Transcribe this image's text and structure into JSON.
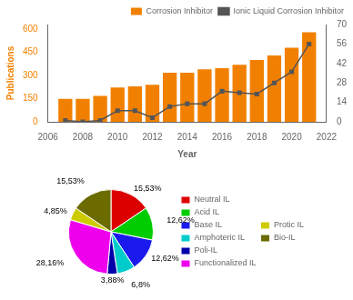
{
  "chart_data": [
    {
      "type": "bar",
      "x": [
        2007,
        2008,
        2009,
        2010,
        2011,
        2012,
        2013,
        2014,
        2015,
        2016,
        2017,
        2018,
        2019,
        2020,
        2021
      ],
      "xlabel": "Year",
      "ylabel": "Publications",
      "xlim": [
        2006,
        2022
      ],
      "xticks": [
        2006,
        2008,
        2010,
        2012,
        2014,
        2016,
        2018,
        2020,
        2022
      ],
      "ylim": [
        0,
        630
      ],
      "yticks": [
        0,
        150,
        300,
        450,
        600
      ],
      "y2lim": [
        0,
        70
      ],
      "y2ticks": [
        0,
        14,
        28,
        42,
        56,
        70
      ],
      "grid": false,
      "legend": "upper right",
      "series": [
        {
          "name": "Corrosion Inhibitor",
          "type": "bar",
          "color": "#F28000",
          "values": [
            148,
            148,
            168,
            222,
            230,
            240,
            318,
            318,
            340,
            348,
            370,
            400,
            430,
            480,
            580
          ]
        },
        {
          "name": "Ionic Liquid Corrosion Inhibitor",
          "type": "line",
          "color": "#555555",
          "marker": "square",
          "axis": "y2",
          "values": [
            1,
            0,
            1,
            8,
            8,
            3,
            11,
            13,
            13,
            22,
            21,
            20,
            28,
            36,
            56
          ]
        }
      ]
    },
    {
      "type": "pie",
      "categories": [
        "Neutral IL",
        "Acid IL",
        "Base IL",
        "Amphoteric IL",
        "Poli-IL",
        "Functionalized IL",
        "Protic IL",
        "Bio-IL"
      ],
      "values": [
        15.53,
        12.62,
        12.62,
        6.8,
        3.88,
        28.16,
        4.85,
        15.53
      ],
      "value_labels": [
        "15,53%",
        "12,62%",
        "12,62%",
        "6,8%",
        "3,88%",
        "28,16%",
        "4,85%",
        "15,53%"
      ],
      "colors": [
        "#DD0000",
        "#00CC00",
        "#1A1AEE",
        "#00CCCC",
        "#0000AA",
        "#EE00EE",
        "#CCCC00",
        "#6B6B00"
      ],
      "data_labels": true,
      "legend": "right"
    }
  ]
}
